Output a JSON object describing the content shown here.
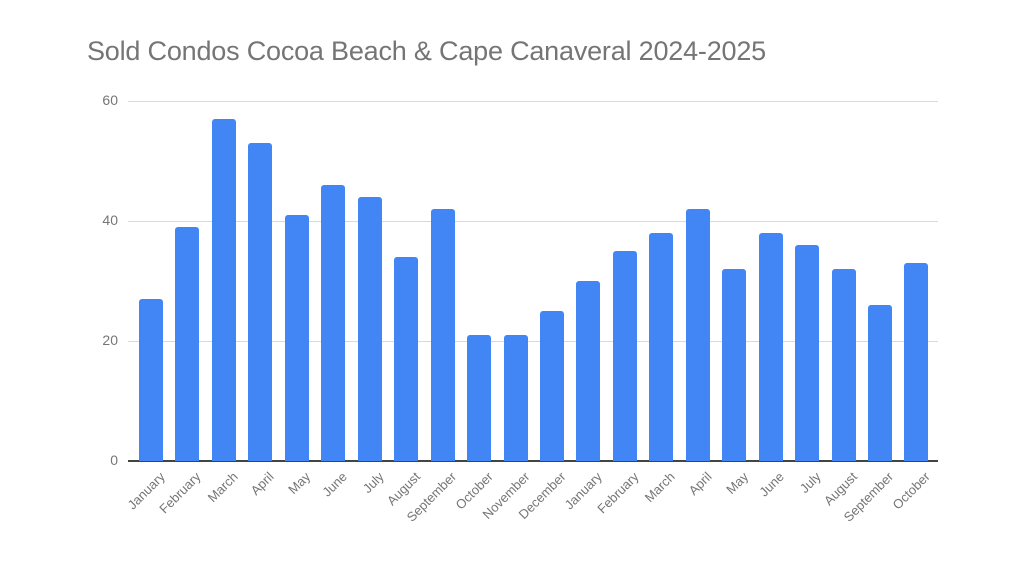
{
  "chart_data": {
    "type": "bar",
    "title": "Sold Condos Cocoa Beach & Cape Canaveral 2024-2025",
    "xlabel": "",
    "ylabel": "",
    "ylim": [
      0,
      60
    ],
    "yticks": [
      0,
      20,
      40,
      60
    ],
    "grid": true,
    "legend": "none",
    "bar_color": "#4285f4",
    "categories": [
      "January",
      "February",
      "March",
      "April",
      "May",
      "June",
      "July",
      "August",
      "September",
      "October",
      "November",
      "December",
      "January",
      "February",
      "March",
      "April",
      "May",
      "June",
      "July",
      "August",
      "September",
      "October"
    ],
    "values": [
      27,
      39,
      57,
      53,
      41,
      46,
      44,
      34,
      42,
      21,
      21,
      25,
      30,
      35,
      38,
      42,
      32,
      38,
      36,
      32,
      26,
      33
    ]
  }
}
